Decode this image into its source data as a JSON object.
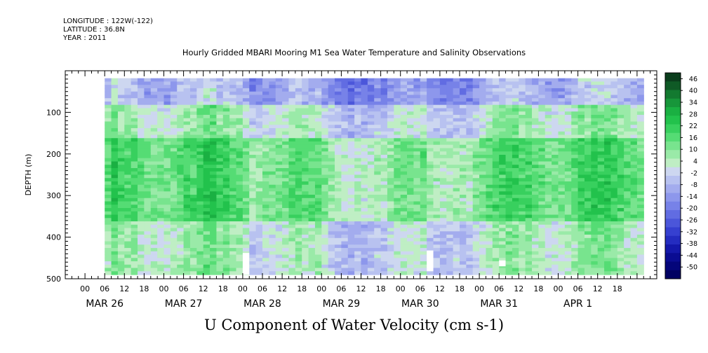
{
  "header": {
    "longitude": "LONGITUDE : 122W(-122)",
    "latitude": "LATITUDE : 36.8N",
    "year": "YEAR : 2011",
    "title": "Hourly Gridded MBARI Mooring M1 Sea Water Temperature and Salinity Observations"
  },
  "chart_data": {
    "type": "heatmap",
    "title": "U Component of Water Velocity (cm s-1)",
    "ylabel": "DEPTH (m)",
    "xlabel": "",
    "ylim": [
      500,
      0
    ],
    "y_ticks": [
      100,
      200,
      300,
      400,
      500
    ],
    "data_extent": {
      "t_start_hours": 6,
      "t_end_hours": 170,
      "depth_top": 18,
      "depth_bottom": 490
    },
    "x_range_hours": [
      -6,
      174
    ],
    "x_hour_ticks": [
      "00",
      "06",
      "12",
      "18",
      "00",
      "06",
      "12",
      "18",
      "00",
      "06",
      "12",
      "18",
      "00",
      "06",
      "12",
      "18",
      "00",
      "06",
      "12",
      "18",
      "00",
      "06",
      "12",
      "18",
      "00",
      "06",
      "12",
      "18"
    ],
    "x_day_labels": [
      "MAR 26",
      "MAR 27",
      "MAR 28",
      "MAR 29",
      "MAR 30",
      "MAR 31",
      "APR  1"
    ],
    "colorbar": {
      "labels": [
        "46",
        "40",
        "34",
        "28",
        "22",
        "16",
        "10",
        "4",
        "-2",
        "-8",
        "-14",
        "-20",
        "-26",
        "-32",
        "-38",
        "-44",
        "-50"
      ],
      "range": [
        -50,
        49
      ],
      "colors_top_to_bottom": [
        "#0a3d1c",
        "#0f5a26",
        "#137a30",
        "#17963a",
        "#1ab042",
        "#22c24c",
        "#38d05e",
        "#55dc74",
        "#78e48e",
        "#9aeaa8",
        "#bfeec4",
        "#cdd7f0",
        "#b8c2f0",
        "#a3acee",
        "#8d97ec",
        "#7782e8",
        "#616ce2",
        "#4b56da",
        "#3640d0",
        "#242cc0",
        "#1418aa",
        "#0a0c92",
        "#04057a",
        "#010162"
      ]
    },
    "gaps": [
      {
        "t_start_hours": 48,
        "t_end_hours": 50,
        "depth_top": 438,
        "depth_bottom": 490
      },
      {
        "t_start_hours": 104,
        "t_end_hours": 106,
        "depth_top": 432,
        "depth_bottom": 482
      },
      {
        "t_start_hours": 126,
        "t_end_hours": 128,
        "depth_top": 456,
        "depth_bottom": 470
      }
    ],
    "value_bands": [
      {
        "depth_from": 18,
        "depth_to": 80,
        "typical": -8
      },
      {
        "depth_from": 80,
        "depth_to": 160,
        "typical": 4
      },
      {
        "depth_from": 160,
        "depth_to": 360,
        "typical": 14
      },
      {
        "depth_from": 360,
        "depth_to": 490,
        "typical": 4
      }
    ]
  }
}
